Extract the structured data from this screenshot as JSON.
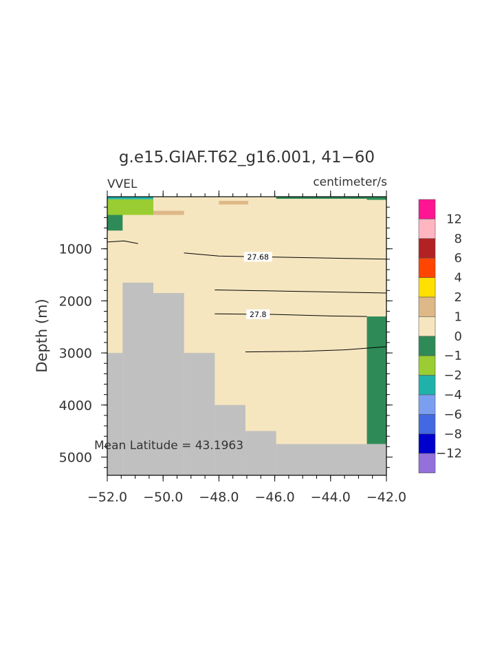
{
  "chart_data": {
    "type": "heatmap",
    "title": "g.e15.GIAF.T62_g16.001, 41−60",
    "variable": "VVEL",
    "units": "centimeter/s",
    "ylabel": "Depth (m)",
    "xlabel": "",
    "xlim": [
      -52.0,
      -42.0
    ],
    "ylim": [
      0,
      5350
    ],
    "y_inverted": true,
    "x_ticks": [
      -52.0,
      -50.0,
      -48.0,
      -46.0,
      -44.0,
      -42.0
    ],
    "x_tick_labels": [
      "−52.0",
      "−50.0",
      "−48.0",
      "−46.0",
      "−44.0",
      "−42.0"
    ],
    "y_ticks": [
      1000,
      2000,
      3000,
      4000,
      5000
    ],
    "y_tick_labels": [
      "1000",
      "2000",
      "3000",
      "4000",
      "5000"
    ],
    "annotation": "Mean Latitude = 43.1963",
    "background_class": "0 to 1",
    "land_color": "#c0c0c0",
    "legend": {
      "position": "right",
      "labels": [
        "12",
        "8",
        "6",
        "4",
        "2",
        "1",
        "0",
        "−1",
        "−2",
        "−4",
        "−6",
        "−8",
        "−12"
      ],
      "colors": [
        "#ff1493",
        "#ffb6c1",
        "#b22222",
        "#ff4500",
        "#ffe000",
        "#deb887",
        "#f5e6c0",
        "#2e8b57",
        "#9acd32",
        "#20b2aa",
        "#7b9ff0",
        "#4169e1",
        "#0000cd",
        "#9370db"
      ]
    },
    "bathymetry": [
      {
        "x0": -52.0,
        "x1": -51.45,
        "depth": 3000
      },
      {
        "x0": -51.45,
        "x1": -50.35,
        "depth": 1650
      },
      {
        "x0": -50.35,
        "x1": -49.25,
        "depth": 1850
      },
      {
        "x0": -49.25,
        "x1": -48.15,
        "depth": 3000
      },
      {
        "x0": -48.15,
        "x1": -47.05,
        "depth": 4000
      },
      {
        "x0": -47.05,
        "x1": -45.95,
        "depth": 4500
      },
      {
        "x0": -45.95,
        "x1": -42.0,
        "depth": 4750
      }
    ],
    "anomaly_cells": [
      {
        "x0": -52.0,
        "x1": -50.35,
        "d0": 0,
        "d1": 50,
        "class": "-2",
        "color": "#20b2aa"
      },
      {
        "x0": -52.0,
        "x1": -50.35,
        "d0": 50,
        "d1": 350,
        "class": "-1",
        "color": "#9acd32"
      },
      {
        "x0": -52.0,
        "x1": -51.45,
        "d0": 350,
        "d1": 650,
        "class": "0 to -1",
        "color": "#2e8b57"
      },
      {
        "x0": -50.35,
        "x1": -49.25,
        "d0": 270,
        "d1": 350,
        "class": "1 to 2",
        "color": "#deb887"
      },
      {
        "x0": -48.0,
        "x1": -46.95,
        "d0": 80,
        "d1": 150,
        "class": "1 to 2",
        "color": "#deb887"
      },
      {
        "x0": -45.95,
        "x1": -42.7,
        "d0": 0,
        "d1": 40,
        "class": "0 to -1",
        "color": "#2e8b57"
      },
      {
        "x0": -42.7,
        "x1": -42.0,
        "d0": 0,
        "d1": 60,
        "class": "0 to -1",
        "color": "#2e8b57"
      },
      {
        "x0": -42.7,
        "x1": -42.0,
        "d0": 2300,
        "d1": 4750,
        "class": "0 to -1",
        "color": "#2e8b57"
      }
    ],
    "contours": [
      {
        "points": [
          [
            -52.0,
            870
          ],
          [
            -51.4,
            850
          ],
          [
            -50.9,
            900
          ]
        ]
      },
      {
        "label": "27.68",
        "label_x": -46.6,
        "points": [
          [
            -49.25,
            1080
          ],
          [
            -48.0,
            1140
          ],
          [
            -46.0,
            1160
          ],
          [
            -44.0,
            1180
          ],
          [
            -42.0,
            1200
          ]
        ]
      },
      {
        "points": [
          [
            -48.15,
            1790
          ],
          [
            -46.0,
            1810
          ],
          [
            -44.0,
            1830
          ],
          [
            -42.0,
            1850
          ]
        ]
      },
      {
        "label": "27.8",
        "label_x": -46.6,
        "points": [
          [
            -48.15,
            2250
          ],
          [
            -46.0,
            2260
          ],
          [
            -44.0,
            2290
          ],
          [
            -42.7,
            2300
          ]
        ]
      },
      {
        "points": [
          [
            -47.05,
            2980
          ],
          [
            -45.0,
            2970
          ],
          [
            -43.5,
            2940
          ],
          [
            -42.0,
            2880
          ]
        ]
      }
    ]
  }
}
